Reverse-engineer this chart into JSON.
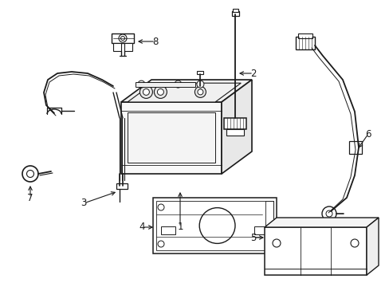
{
  "bg_color": "#ffffff",
  "line_color": "#1a1a1a",
  "fig_width": 4.89,
  "fig_height": 3.6,
  "dpi": 100,
  "imgW": 489,
  "imgH": 360
}
